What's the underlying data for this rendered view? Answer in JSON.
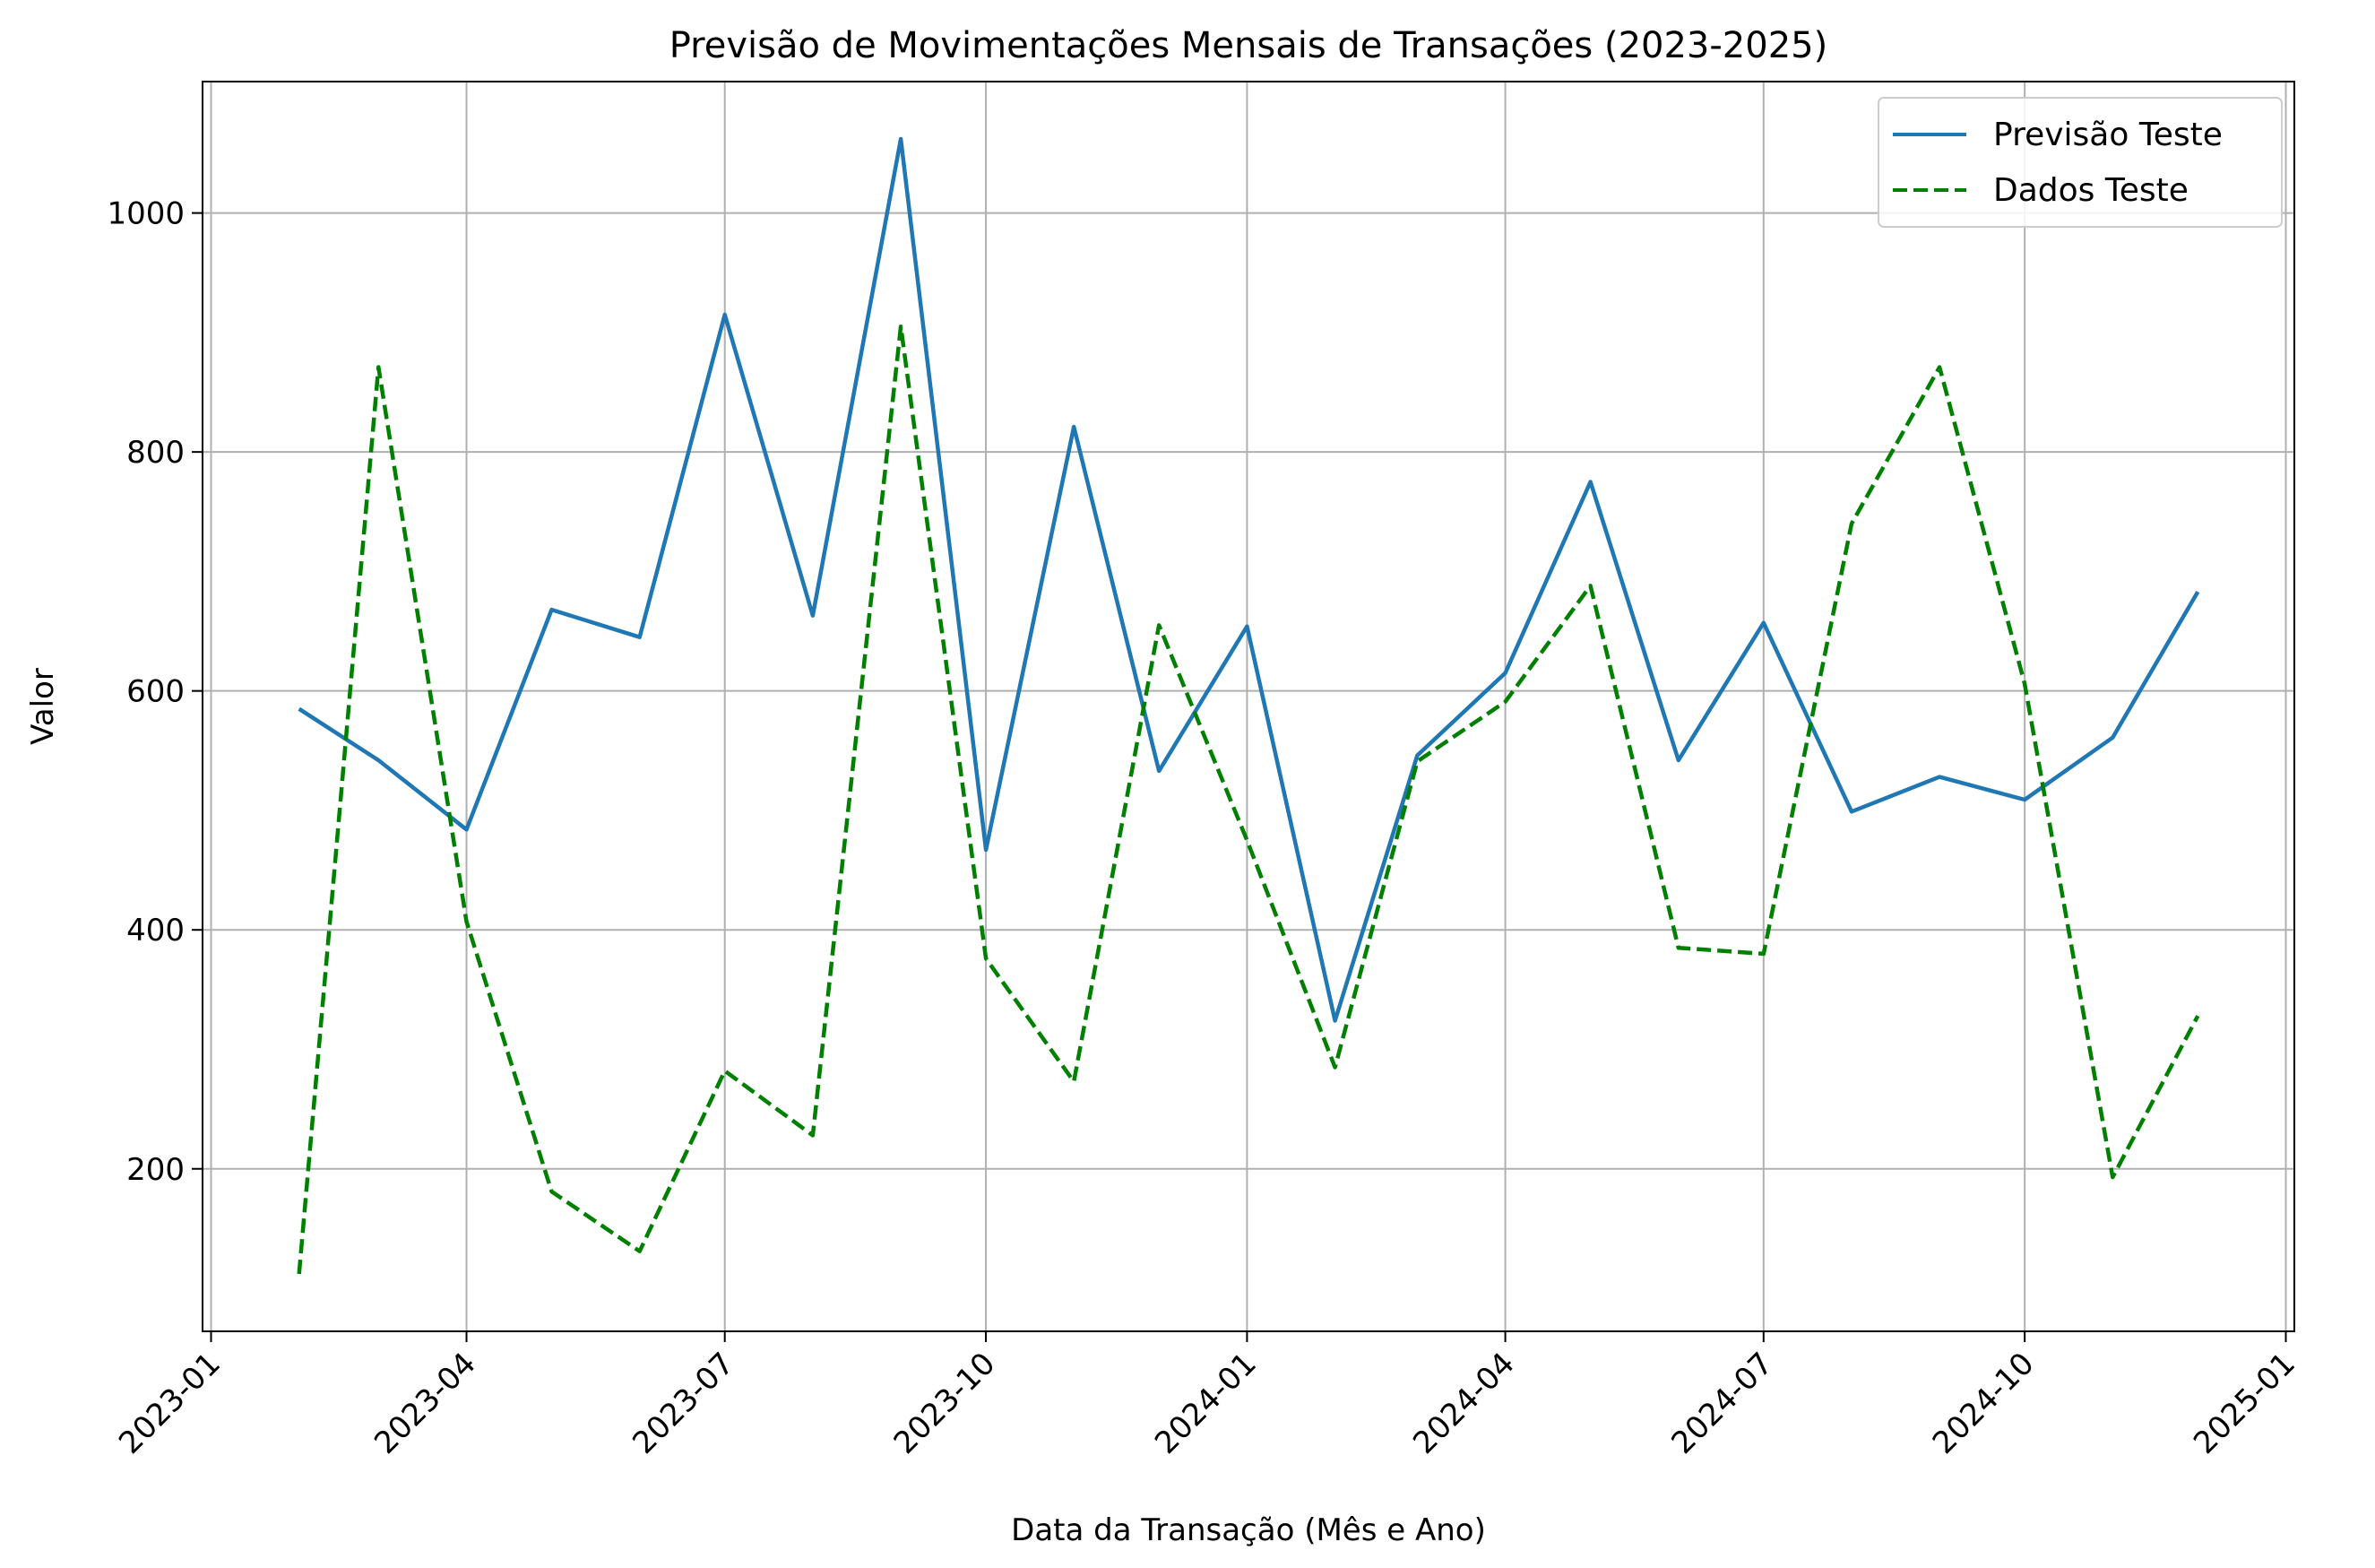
{
  "chart_data": {
    "type": "line",
    "title": "Previsão de Movimentações Mensais de Transações (2023-2025)",
    "xlabel": "Data da Transação (Mês e Ano)",
    "ylabel": "Valor",
    "x": [
      "2023-02",
      "2023-03",
      "2023-04",
      "2023-05",
      "2023-06",
      "2023-07",
      "2023-08",
      "2023-09",
      "2023-10",
      "2023-11",
      "2023-12",
      "2024-01",
      "2024-02",
      "2024-03",
      "2024-04",
      "2024-05",
      "2024-06",
      "2024-07",
      "2024-08",
      "2024-09",
      "2024-10",
      "2024-11",
      "2024-12"
    ],
    "series": [
      {
        "name": "Previsão Teste",
        "color": "#1f77b4",
        "style": "solid",
        "values": [
          585,
          542,
          484,
          668,
          645,
          915,
          663,
          1062,
          467,
          821,
          533,
          654,
          324,
          546,
          615,
          775,
          542,
          657,
          499,
          528,
          509,
          561,
          683
        ]
      },
      {
        "name": "Dados Teste",
        "color": "#008000",
        "style": "dashed",
        "values": [
          112,
          871,
          407,
          181,
          131,
          282,
          228,
          905,
          376,
          273,
          655,
          475,
          285,
          541,
          591,
          688,
          385,
          380,
          740,
          871,
          606,
          193,
          328
        ]
      }
    ],
    "xticks": [
      "2023-01",
      "2023-04",
      "2023-07",
      "2023-10",
      "2024-01",
      "2024-04",
      "2024-07",
      "2024-10",
      "2025-01"
    ],
    "yticks": [
      200,
      400,
      600,
      800,
      1000
    ],
    "xlim": [
      "2022-12-29",
      "2025-01-04"
    ],
    "ylim": [
      64,
      1110
    ],
    "grid": true,
    "legend": "top-right"
  }
}
